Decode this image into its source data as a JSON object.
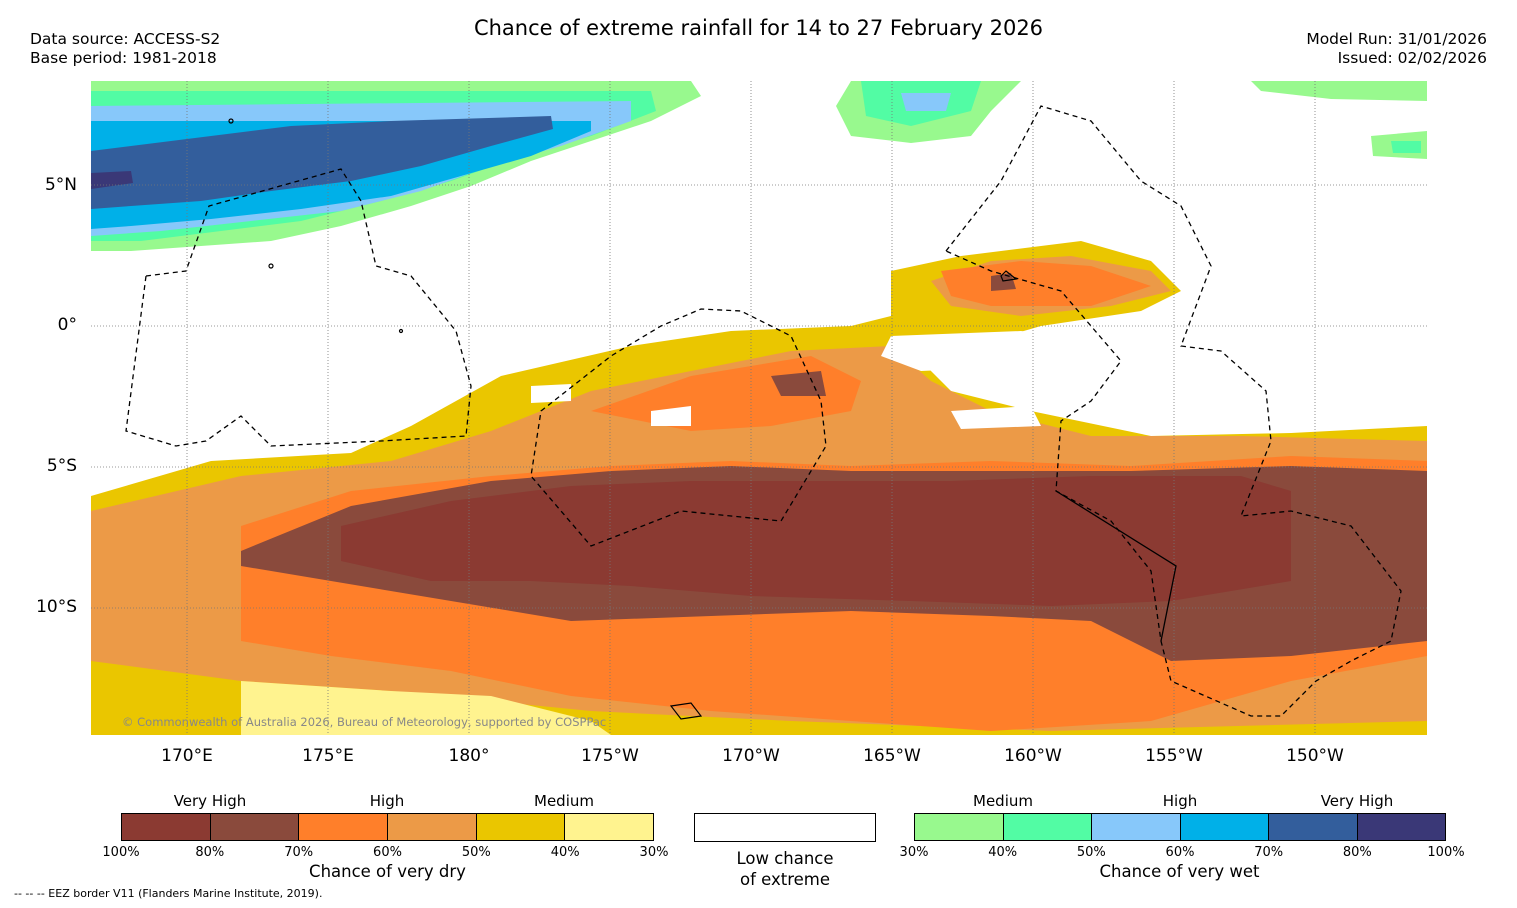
{
  "header": {
    "title": "Chance of extreme rainfall for 14 to 27 February 2026",
    "data_source": "Data source: ACCESS-S2",
    "base_period": "Base period: 1981-2018",
    "model_run": "Model Run: 31/01/2026",
    "issued": "Issued: 02/02/2026"
  },
  "map": {
    "lat_labels": [
      "5°N",
      "0°",
      "5°S",
      "10°S"
    ],
    "lon_labels": [
      "170°E",
      "175°E",
      "180°",
      "175°W",
      "170°W",
      "165°W",
      "160°W",
      "155°W",
      "150°W"
    ],
    "copyright": "© Commonwealth of Australia 2026, Bureau of Meteorology, supported by COSPPac"
  },
  "legend": {
    "dry": {
      "categories": [
        "Very High",
        "High",
        "Medium"
      ],
      "ticks": [
        "100%",
        "80%",
        "70%",
        "60%",
        "50%",
        "40%",
        "30%"
      ],
      "colors": [
        "#8b3a32",
        "#8a4a3c",
        "#ff7f2a",
        "#ec9a47",
        "#eac600",
        "#fff38f"
      ],
      "caption": "Chance of very dry"
    },
    "low": {
      "caption_line1": "Low chance",
      "caption_line2": "of extreme"
    },
    "wet": {
      "categories": [
        "Medium",
        "High",
        "Very High"
      ],
      "ticks": [
        "30%",
        "40%",
        "50%",
        "60%",
        "70%",
        "80%",
        "100%"
      ],
      "colors": [
        "#98f98e",
        "#52fca4",
        "#87c8fa",
        "#00b0e8",
        "#335e9c",
        "#3a3877"
      ],
      "caption": "Chance of very wet"
    }
  },
  "footnote": "--  --  -- EEZ border V11 (Flanders Marine Institute, 2019)."
}
